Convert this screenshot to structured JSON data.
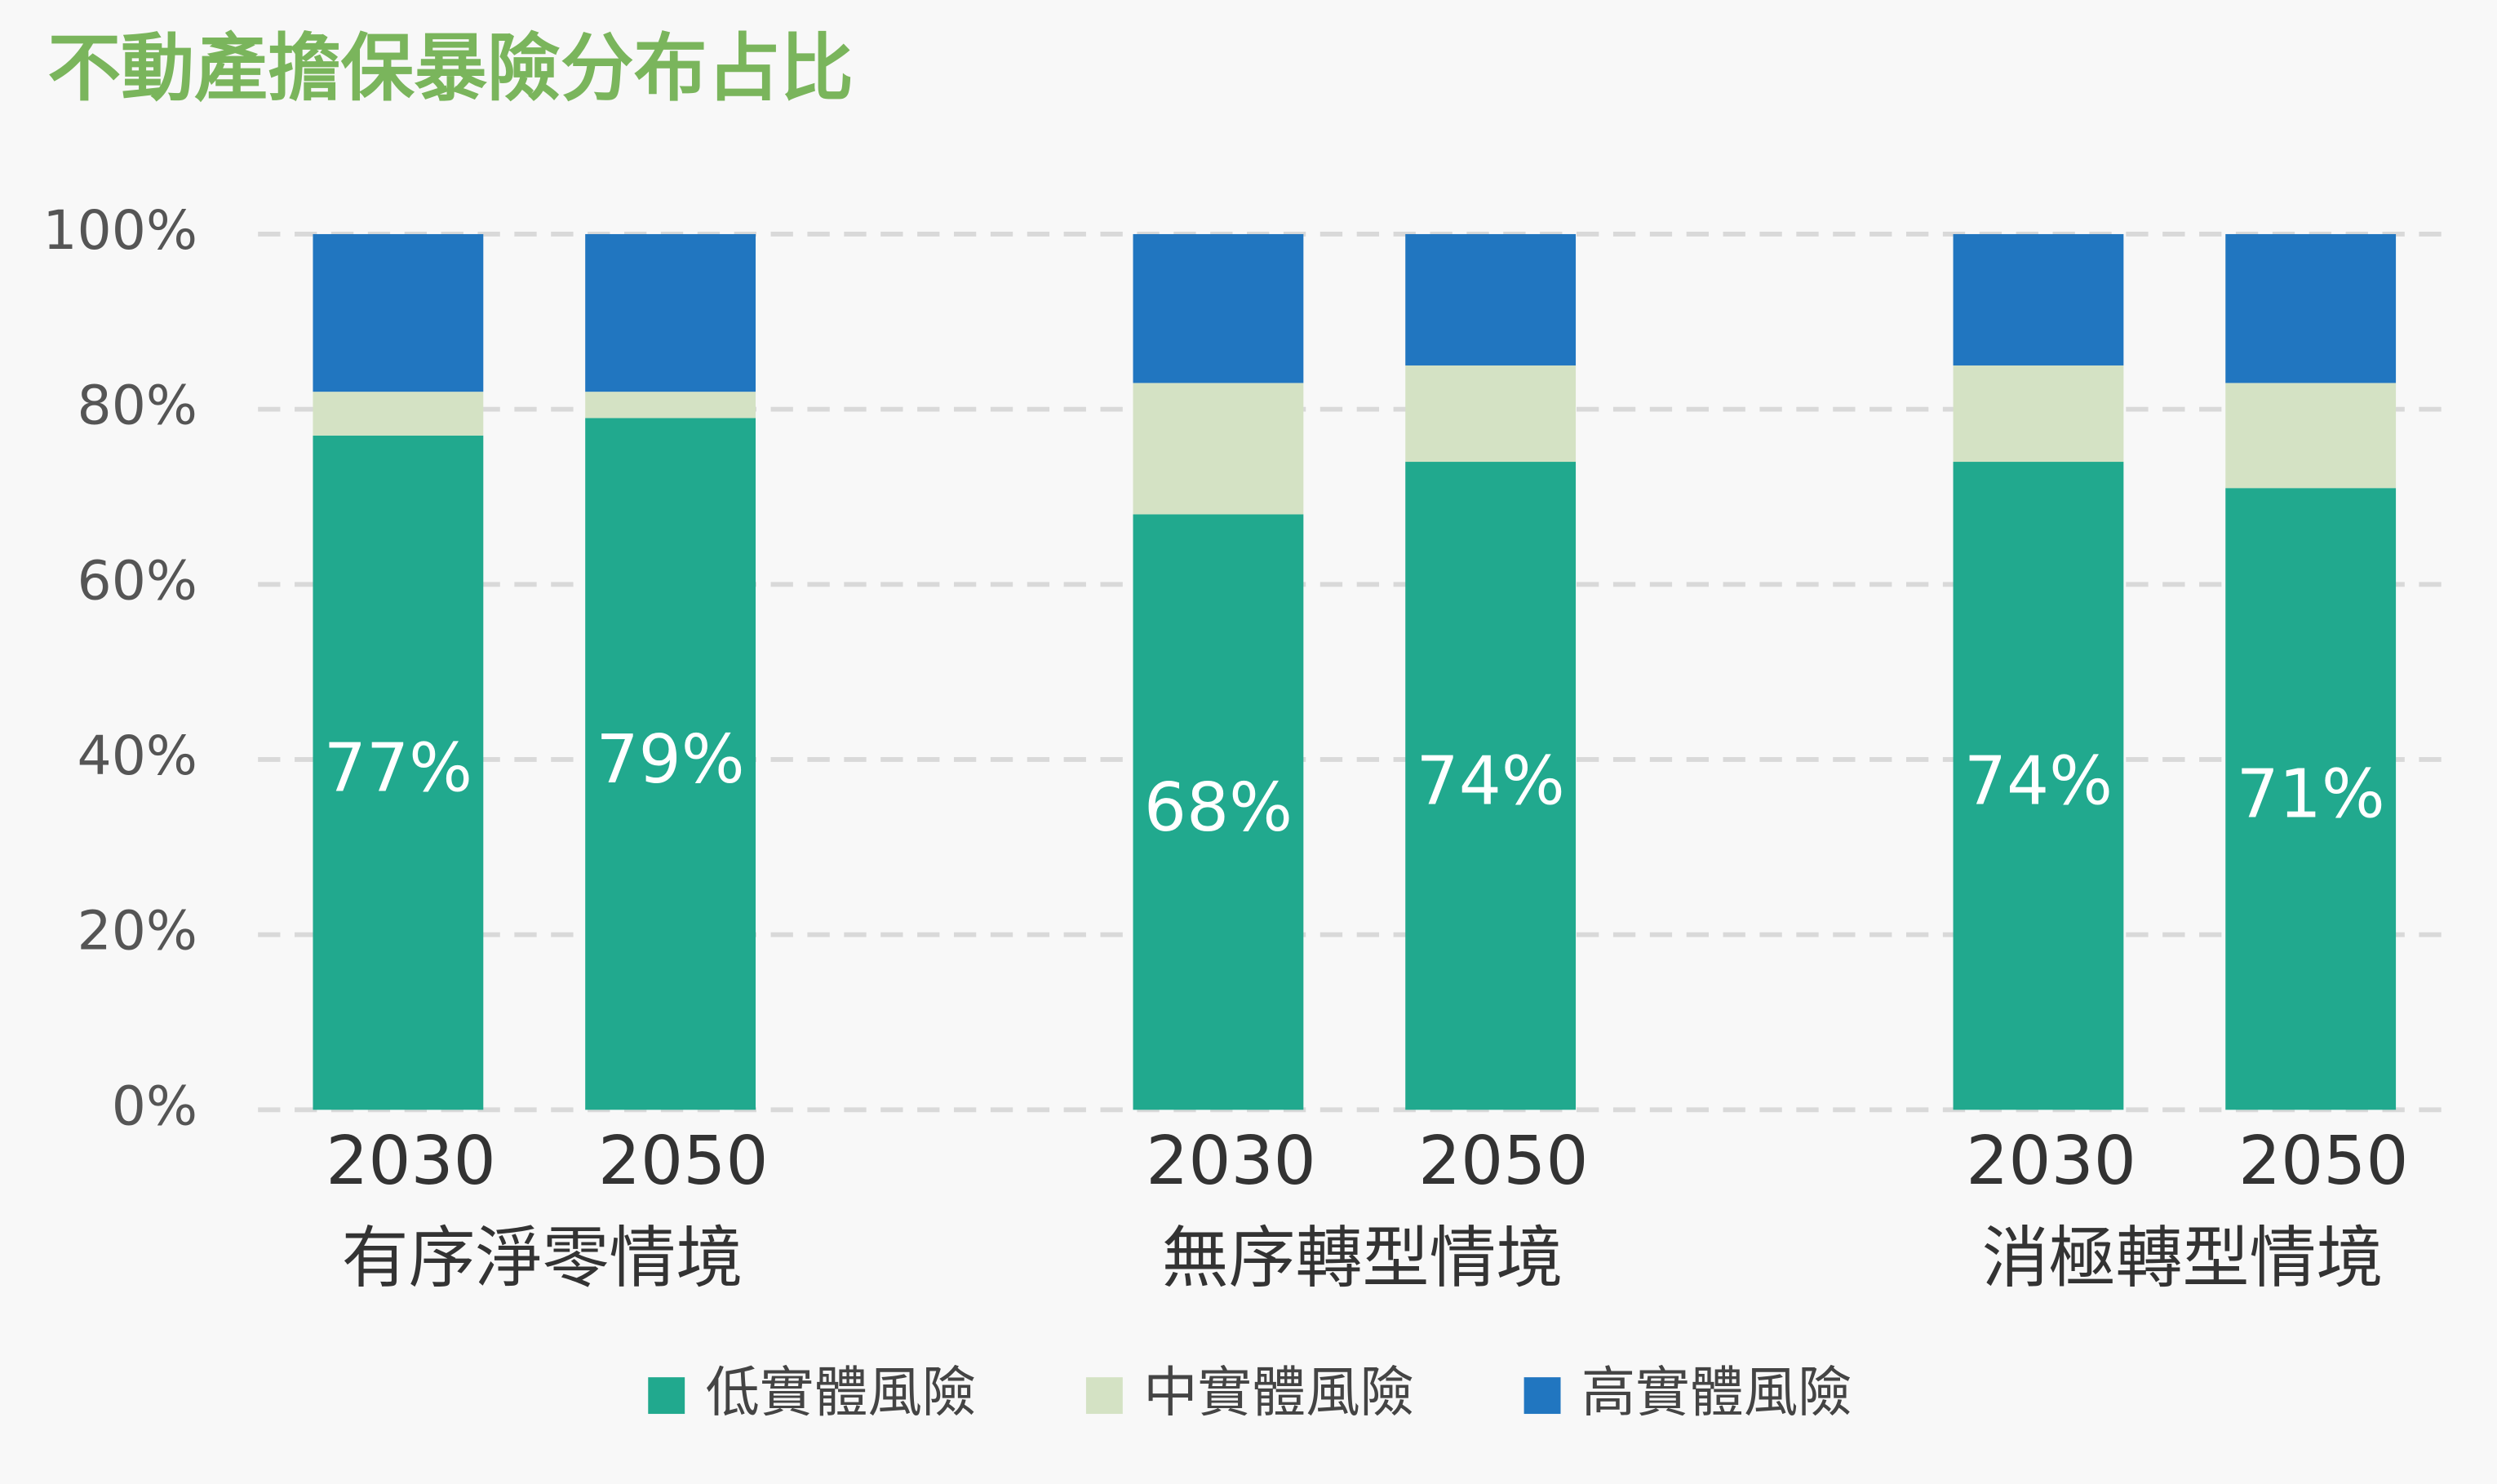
{
  "chart_data": {
    "type": "stacked-bar",
    "title": "不動產擔保暴險分布占比",
    "categories": [
      "2030",
      "2050",
      "2030",
      "2050",
      "2030",
      "2050"
    ],
    "groups": [
      "有序淨零情境",
      "無序轉型情境",
      "消極轉型情境"
    ],
    "series": [
      {
        "name": "低實體風險",
        "color": "#21a98e",
        "values": [
          77,
          79,
          68,
          74,
          74,
          71
        ],
        "value_labels": [
          "77%",
          "79%",
          "68%",
          "74%",
          "74%",
          "71%"
        ]
      },
      {
        "name": "中實體風險",
        "color": "#d4e2c4",
        "values": [
          5,
          3,
          15,
          11,
          11,
          12
        ]
      },
      {
        "name": "高實體風險",
        "color": "#2176c0",
        "values": [
          18,
          18,
          17,
          15,
          15,
          17
        ]
      }
    ],
    "ylim": [
      0,
      100
    ],
    "yticks": [
      {
        "value": 0,
        "label": "0%"
      },
      {
        "value": 20,
        "label": "20%"
      },
      {
        "value": 40,
        "label": "40%"
      },
      {
        "value": 60,
        "label": "60%"
      },
      {
        "value": 80,
        "label": "80%"
      },
      {
        "value": 100,
        "label": "100%"
      }
    ],
    "grid": true,
    "legend": "bottom"
  }
}
